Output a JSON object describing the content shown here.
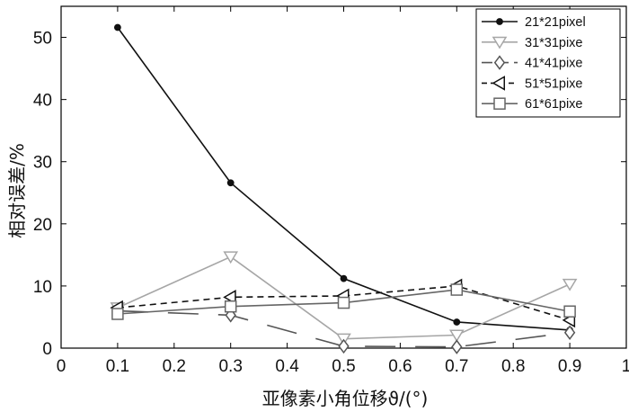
{
  "chart_data": {
    "type": "line",
    "xlabel": "亚像素小角位移ϑ/(°)",
    "ylabel": "相对误差/%",
    "xlim": [
      0,
      1
    ],
    "ylim": [
      0,
      55
    ],
    "x_ticks": [
      "0",
      "0.1",
      "0.2",
      "0.3",
      "0.4",
      "0.5",
      "0.6",
      "0.7",
      "0.8",
      "0.9",
      "1"
    ],
    "y_ticks": [
      "0",
      "10",
      "20",
      "30",
      "40",
      "50"
    ],
    "legend_position": "top-right",
    "x": [
      0.1,
      0.3,
      0.5,
      0.7,
      0.9
    ],
    "series": [
      {
        "name": "21*21pixel",
        "values": [
          51.6,
          26.6,
          11.2,
          4.2,
          2.9
        ],
        "color": "#111111",
        "marker": "dot",
        "dash": "solid"
      },
      {
        "name": "31*31pixe",
        "values": [
          6.5,
          14.7,
          1.5,
          2.1,
          10.3
        ],
        "color": "#a6a6a6",
        "marker": "triangle-down",
        "dash": "solid"
      },
      {
        "name": "41*41pixe",
        "values": [
          6.0,
          5.3,
          0.3,
          0.2,
          2.5
        ],
        "color": "#555555",
        "marker": "diamond",
        "dash": "long-dash"
      },
      {
        "name": "51*51pixe",
        "values": [
          6.5,
          8.2,
          8.4,
          10.0,
          4.5
        ],
        "color": "#111111",
        "marker": "triangle-left",
        "dash": "short-dash"
      },
      {
        "name": "61*61pixe",
        "values": [
          5.5,
          6.7,
          7.3,
          9.4,
          5.9
        ],
        "color": "#666666",
        "marker": "square",
        "dash": "solid"
      }
    ]
  }
}
